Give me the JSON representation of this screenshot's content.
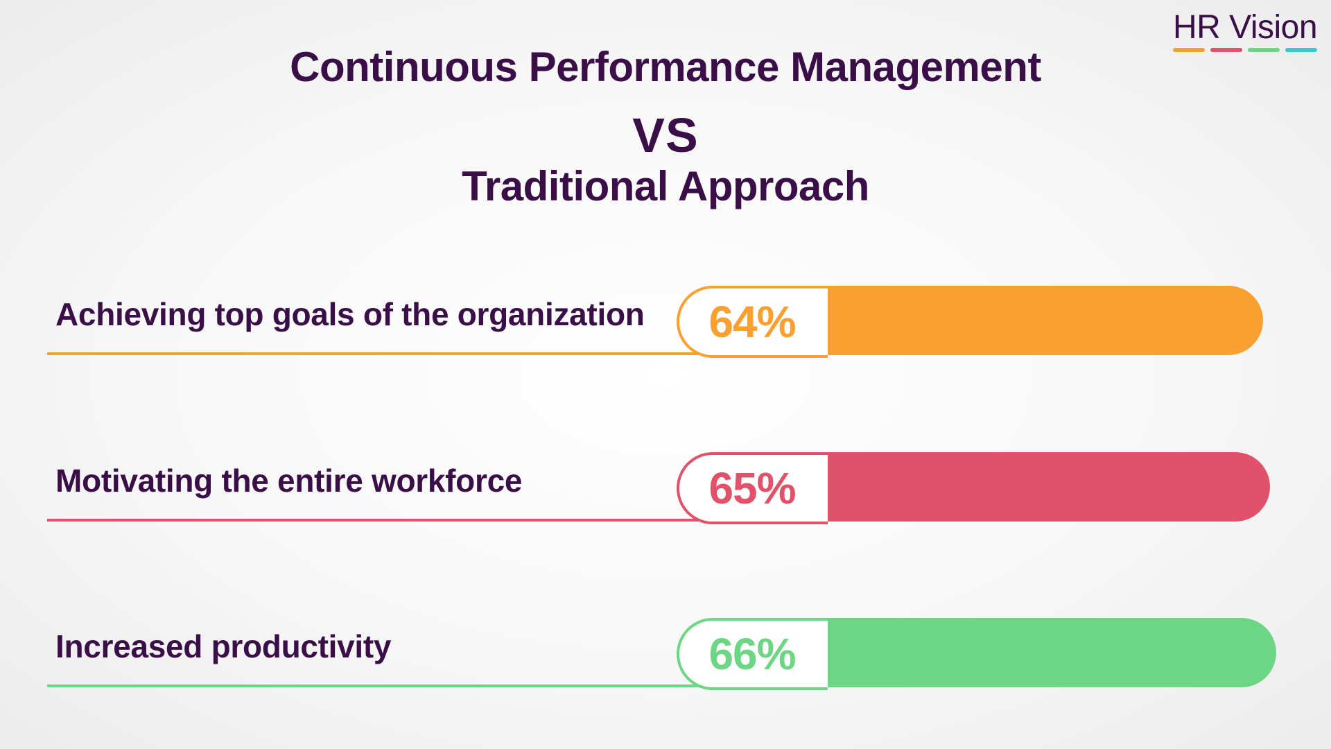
{
  "header": {
    "title_line1": "Continuous Performance Management",
    "title_line2": "VS",
    "title_line3": "Traditional Approach"
  },
  "logo": {
    "text": "HR Vision",
    "dash_colors": [
      "#f9a031",
      "#e2516a",
      "#6dd684",
      "#3ccbcb"
    ]
  },
  "chart_data": {
    "type": "bar",
    "orientation": "horizontal",
    "title": "Continuous Performance Management VS Traditional Approach",
    "categories": [
      "Achieving top goals of the organization",
      "Motivating the entire workforce",
      "Increased productivity"
    ],
    "values": [
      64,
      65,
      66
    ],
    "value_labels": [
      "64%",
      "65%",
      "66%"
    ],
    "unit": "%",
    "colors": [
      "#f9a031",
      "#e2516a",
      "#6dd684"
    ],
    "grid": false,
    "legend": "none"
  }
}
